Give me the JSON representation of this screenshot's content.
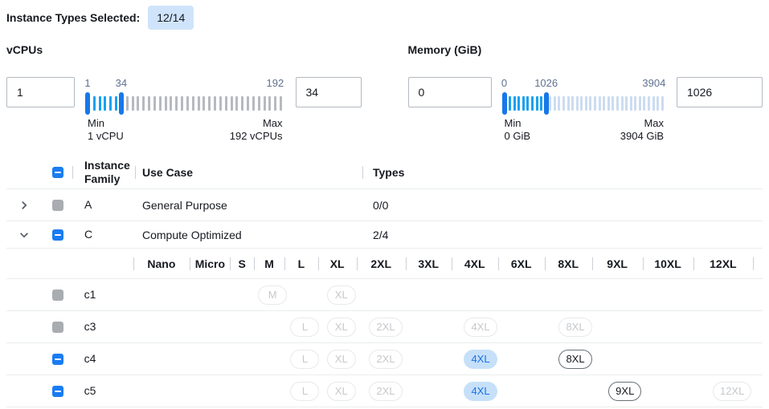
{
  "header": {
    "label": "Instance Types Selected:",
    "badge": "12/14"
  },
  "filters": [
    {
      "title": "vCPUs",
      "low_input": "1",
      "high_input": "34",
      "range_min": 1,
      "range_max": 192,
      "handle_low": 1,
      "handle_high": 34,
      "tick_labels": [
        "1",
        "34",
        "192"
      ],
      "min_caption": "Min",
      "min_detail": "1 vCPU",
      "max_caption": "Max",
      "max_detail": "192 vCPUs",
      "active_tick_color": "#19a1f0",
      "inactive_tick_color": "#b6babf"
    },
    {
      "title": "Memory (GiB)",
      "low_input": "0",
      "high_input": "1026",
      "range_min": 0,
      "range_max": 3904,
      "handle_low": 0,
      "handle_high": 1026,
      "tick_labels": [
        "0",
        "1026",
        "3904"
      ],
      "min_caption": "Min",
      "min_detail": "0 GiB",
      "max_caption": "Max",
      "max_detail": "3904 GiB",
      "active_tick_color": "#19a1f0",
      "inactive_tick_color": "#ccdcf1"
    }
  ],
  "table": {
    "columns": {
      "family": "Instance Family",
      "use_case": "Use Case",
      "types": "Types"
    },
    "header_checkbox": "indeterminate",
    "family_rows": [
      {
        "expand": "collapsed",
        "checkbox": "disabled",
        "family": "A",
        "use_case": "General Purpose",
        "types": "0/0"
      },
      {
        "expand": "expanded",
        "checkbox": "indeterminate",
        "family": "C",
        "use_case": "Compute Optimized",
        "types": "2/4"
      }
    ],
    "size_columns": [
      "Nano",
      "Micro",
      "S",
      "M",
      "L",
      "XL",
      "2XL",
      "3XL",
      "4XL",
      "6XL",
      "8XL",
      "9XL",
      "10XL",
      "12XL"
    ],
    "instance_rows": [
      {
        "name": "c1",
        "checkbox": "disabled",
        "badges": [
          {
            "size": "M",
            "state": "disabled"
          },
          {
            "size": "XL",
            "state": "disabled"
          }
        ]
      },
      {
        "name": "c3",
        "checkbox": "disabled",
        "badges": [
          {
            "size": "L",
            "state": "disabled"
          },
          {
            "size": "XL",
            "state": "disabled"
          },
          {
            "size": "2XL",
            "state": "disabled"
          },
          {
            "size": "4XL",
            "state": "disabled"
          },
          {
            "size": "8XL",
            "state": "disabled"
          }
        ]
      },
      {
        "name": "c4",
        "checkbox": "indeterminate",
        "badges": [
          {
            "size": "L",
            "state": "disabled"
          },
          {
            "size": "XL",
            "state": "disabled"
          },
          {
            "size": "2XL",
            "state": "disabled"
          },
          {
            "size": "4XL",
            "state": "selected"
          },
          {
            "size": "8XL",
            "state": "available"
          }
        ]
      },
      {
        "name": "c5",
        "checkbox": "indeterminate",
        "badges": [
          {
            "size": "L",
            "state": "disabled"
          },
          {
            "size": "XL",
            "state": "disabled"
          },
          {
            "size": "2XL",
            "state": "disabled"
          },
          {
            "size": "4XL",
            "state": "selected"
          },
          {
            "size": "9XL",
            "state": "available"
          },
          {
            "size": "12XL",
            "state": "disabled"
          }
        ]
      }
    ]
  },
  "colors": {
    "accent_blue": "#1a7cf2",
    "slider_handle": "#1778e8",
    "selected_badge_bg": "#c6e0f9",
    "selected_badge_text": "#1a72e8",
    "selected_count_badge_bg": "#cfe4fb",
    "disabled_gray": "#a9acb0",
    "row_border": "#eaeded"
  }
}
